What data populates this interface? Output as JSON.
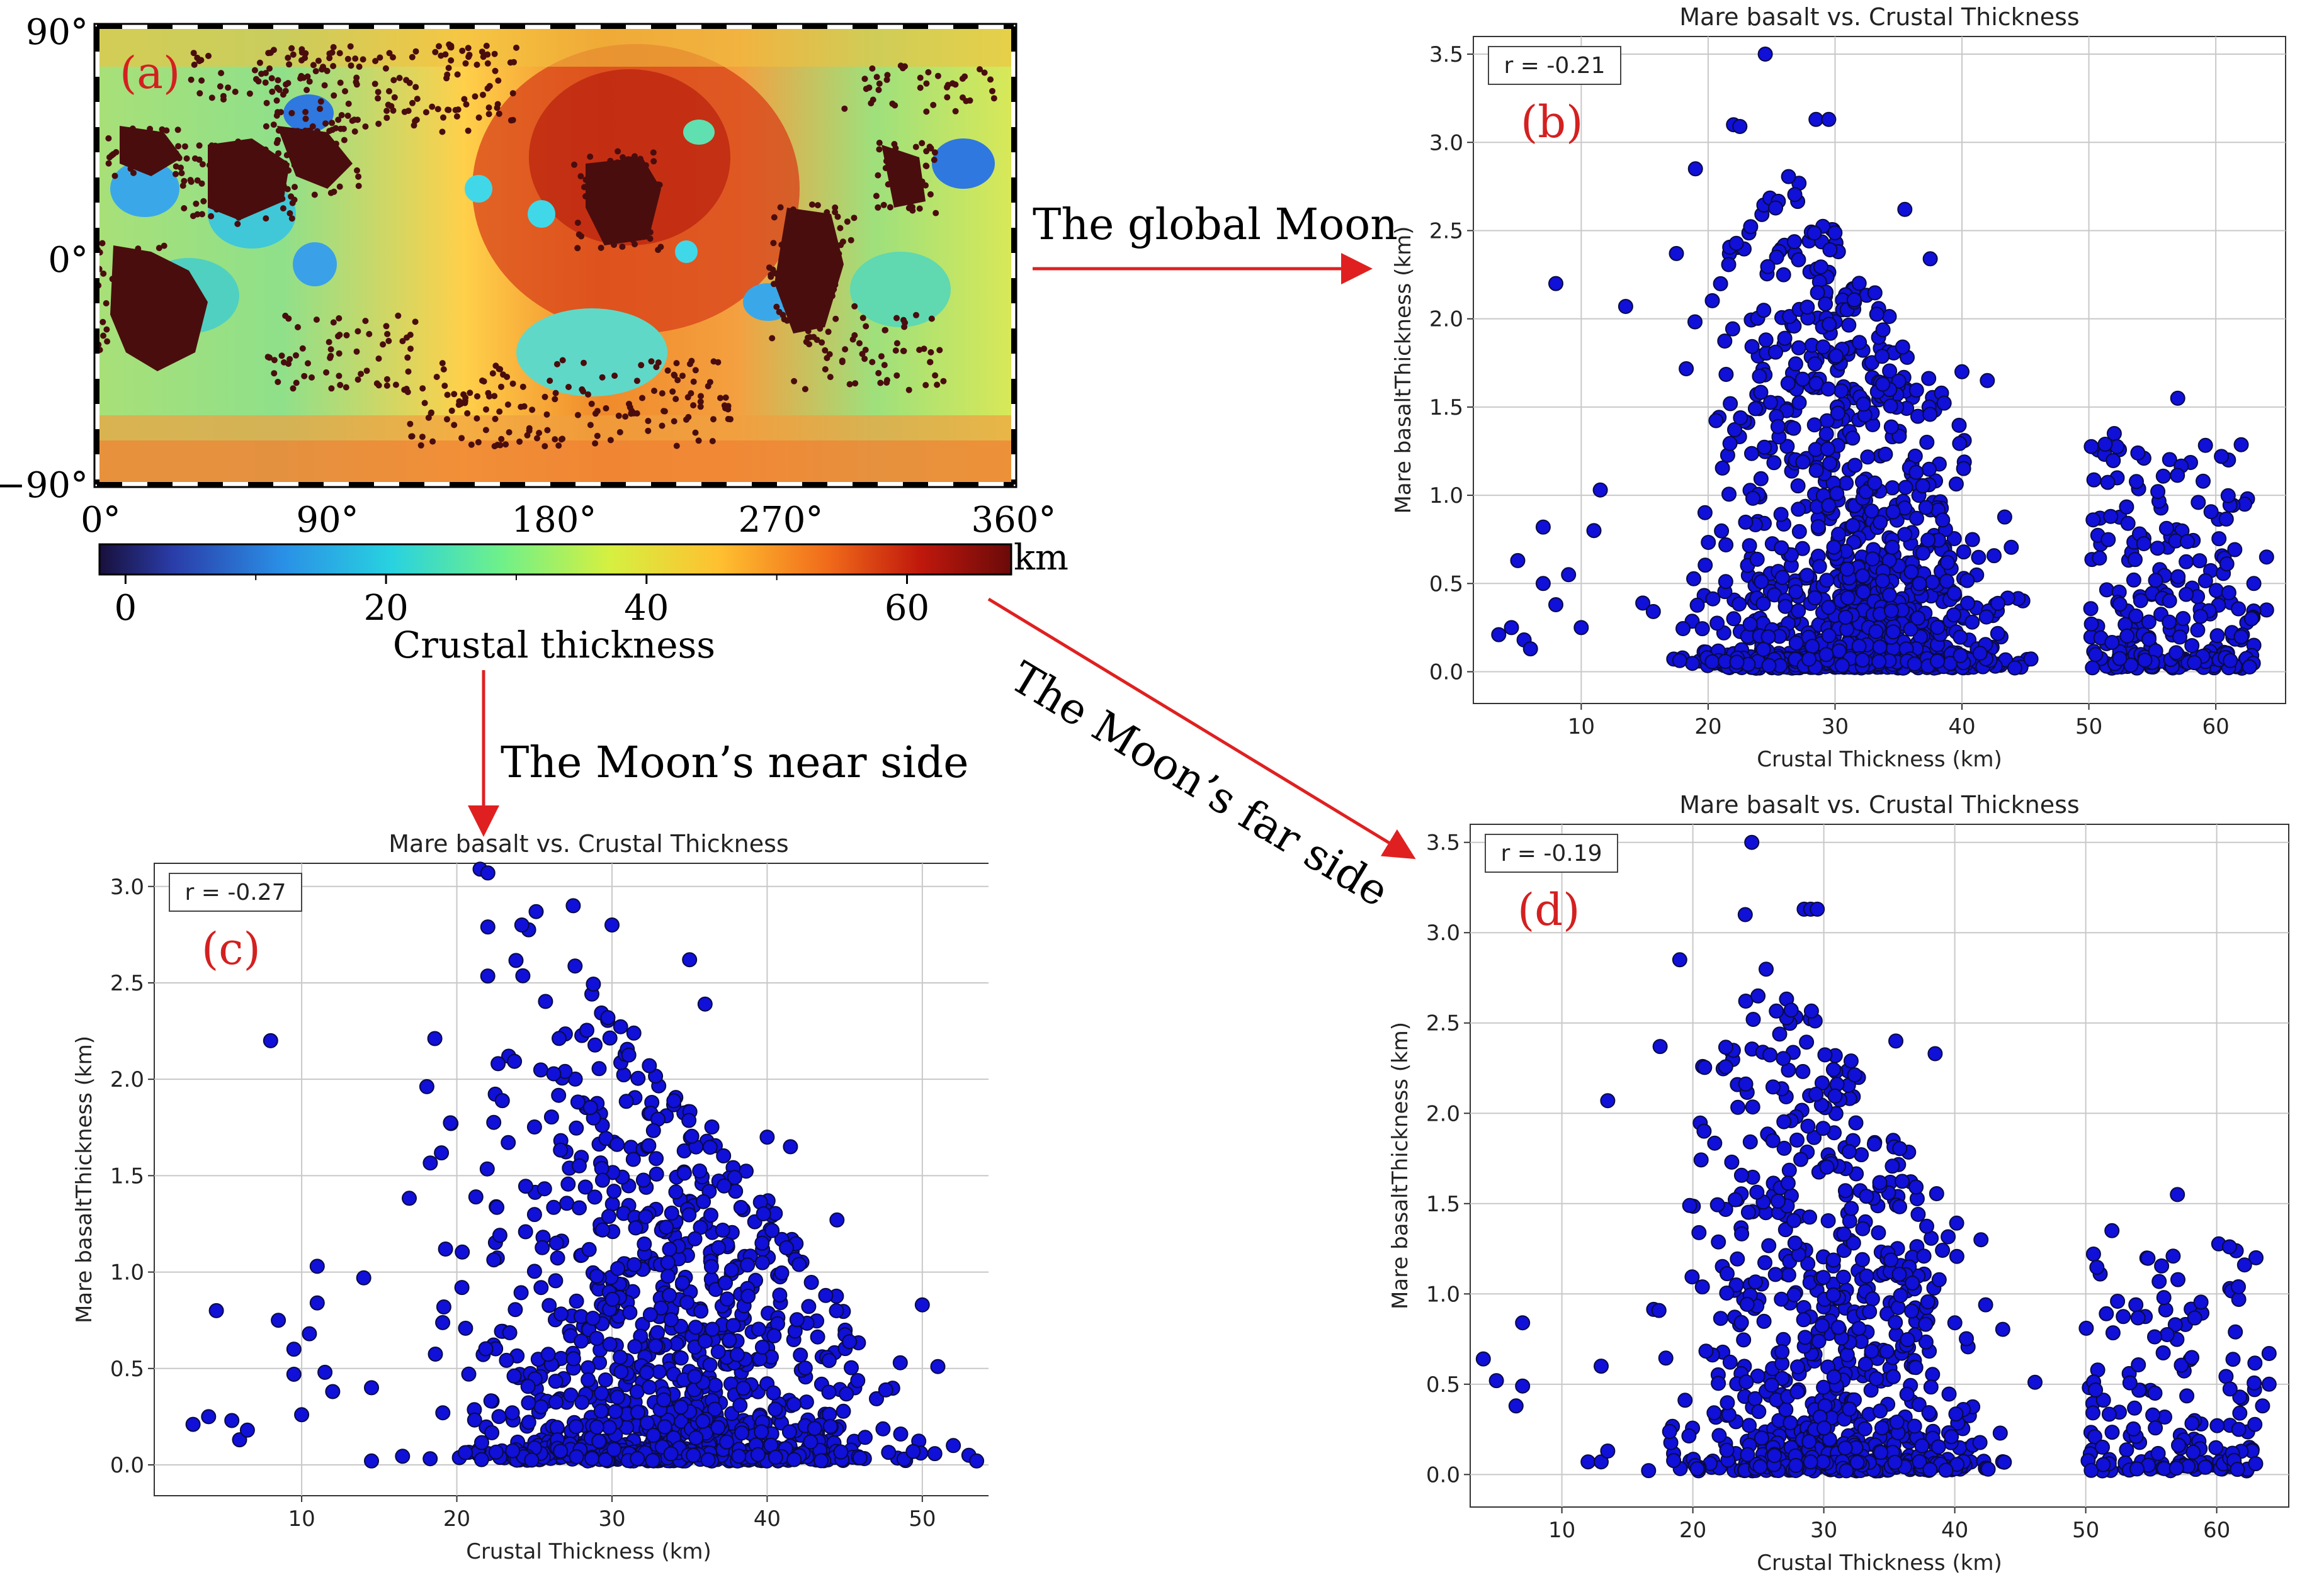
{
  "colors": {
    "point_fill": "#1010d8",
    "point_edge": "#0a0a40",
    "panel_label": "#d42020",
    "arrow": "#e02020",
    "map_basalt": "#4a0d0d"
  },
  "map": {
    "panel_label": "(a)",
    "lat_ticks": [
      "90°",
      "0°",
      "−90°"
    ],
    "lon_ticks": [
      "0°",
      "90°",
      "180°",
      "270°",
      "360°"
    ],
    "colorbar": {
      "ticks": [
        "0",
        "20",
        "40",
        "60"
      ],
      "unit": "km",
      "label": "Crustal thickness",
      "range": [
        -2,
        68
      ]
    }
  },
  "annotations": {
    "global": "The global Moon",
    "near": "The Moon’s near side",
    "far": "The Moon’s far side"
  },
  "chart_data": [
    {
      "id": "b",
      "panel_label": "(b)",
      "type": "scatter",
      "title": "Mare basalt vs. Crustal Thickness",
      "xlabel": "Crustal Thickness (km)",
      "ylabel": "Mare basaltThickness (km)",
      "r_label": "r = -0.21",
      "xlim": [
        1.5,
        65.5
      ],
      "ylim": [
        -0.18,
        3.6
      ],
      "xticks": [
        10,
        20,
        30,
        40,
        50,
        60
      ],
      "yticks": [
        0.0,
        0.5,
        1.0,
        1.5,
        2.0,
        2.5,
        3.0,
        3.5
      ],
      "grid": true,
      "n_points": 1400,
      "seed": 11,
      "points": [
        [
          3.5,
          0.21
        ],
        [
          4.5,
          0.25
        ],
        [
          5.0,
          0.63
        ],
        [
          5.5,
          0.18
        ],
        [
          6.0,
          0.13
        ],
        [
          7.0,
          0.82
        ],
        [
          7.0,
          0.5
        ],
        [
          8.0,
          2.2
        ],
        [
          8.0,
          0.38
        ],
        [
          9.0,
          0.55
        ],
        [
          10.0,
          0.25
        ],
        [
          11.0,
          0.8
        ],
        [
          11.5,
          1.03
        ],
        [
          13.5,
          2.07
        ],
        [
          22.0,
          3.1
        ],
        [
          22.5,
          3.09
        ],
        [
          24.5,
          3.5
        ],
        [
          28.5,
          3.13
        ],
        [
          29.5,
          3.13
        ],
        [
          17.5,
          2.37
        ],
        [
          19.0,
          2.85
        ],
        [
          35.5,
          2.62
        ],
        [
          37.5,
          2.34
        ],
        [
          40.0,
          1.7
        ],
        [
          42.0,
          1.65
        ],
        [
          52.0,
          1.35
        ],
        [
          57.0,
          1.55
        ],
        [
          59.0,
          1.08
        ],
        [
          61.0,
          1.2
        ],
        [
          62.5,
          0.98
        ],
        [
          64.0,
          0.65
        ],
        [
          64.0,
          0.35
        ],
        [
          63.0,
          0.5
        ],
        [
          62.0,
          0.18
        ],
        [
          63.0,
          0.15
        ],
        [
          60.0,
          0.14
        ]
      ]
    },
    {
      "id": "c",
      "panel_label": "(c)",
      "type": "scatter",
      "title": "Mare basalt vs. Crustal Thickness",
      "xlabel": "Crustal Thickness (km)",
      "ylabel": "Mare basaltThickness (km)",
      "r_label": "r = -0.27",
      "xlim": [
        0.5,
        56.5
      ],
      "ylim": [
        -0.16,
        3.12
      ],
      "xticks": [
        10,
        20,
        30,
        40,
        50
      ],
      "yticks": [
        0.0,
        0.5,
        1.0,
        1.5,
        2.0,
        2.5,
        3.0
      ],
      "grid": true,
      "n_points": 1200,
      "seed": 23,
      "points": [
        [
          3.0,
          0.21
        ],
        [
          4.0,
          0.25
        ],
        [
          4.5,
          0.8
        ],
        [
          5.5,
          0.23
        ],
        [
          6.0,
          0.13
        ],
        [
          6.5,
          0.18
        ],
        [
          8.0,
          2.2
        ],
        [
          8.5,
          0.75
        ],
        [
          9.5,
          0.47
        ],
        [
          9.5,
          0.6
        ],
        [
          10.0,
          0.26
        ],
        [
          10.5,
          0.68
        ],
        [
          11.0,
          0.84
        ],
        [
          11.0,
          1.03
        ],
        [
          11.5,
          0.48
        ],
        [
          12.0,
          0.38
        ],
        [
          14.0,
          0.97
        ],
        [
          14.5,
          0.4
        ],
        [
          14.5,
          0.02
        ],
        [
          21.5,
          3.09
        ],
        [
          22.0,
          3.07
        ],
        [
          22.0,
          2.79
        ],
        [
          27.5,
          2.9
        ],
        [
          30.0,
          2.8
        ],
        [
          35.0,
          2.62
        ],
        [
          36.0,
          2.39
        ],
        [
          40.0,
          1.7
        ],
        [
          41.5,
          1.65
        ],
        [
          44.5,
          1.27
        ],
        [
          50.0,
          0.83
        ],
        [
          51.0,
          0.51
        ],
        [
          52.0,
          0.1
        ],
        [
          53.0,
          0.05
        ],
        [
          53.5,
          0.02
        ]
      ]
    },
    {
      "id": "d",
      "panel_label": "(d)",
      "type": "scatter",
      "title": "Mare basalt vs. Crustal Thickness",
      "xlabel": "Crustal Thickness (km)",
      "ylabel": "Mare basaltThickness (km)",
      "r_label": "r = -0.19",
      "xlim": [
        3.0,
        65.5
      ],
      "ylim": [
        -0.18,
        3.6
      ],
      "xticks": [
        10,
        20,
        30,
        40,
        50,
        60
      ],
      "yticks": [
        0.0,
        0.5,
        1.0,
        1.5,
        2.0,
        2.5,
        3.0,
        3.5
      ],
      "grid": true,
      "n_points": 1000,
      "seed": 37,
      "points": [
        [
          4.0,
          0.64
        ],
        [
          5.0,
          0.52
        ],
        [
          6.5,
          0.38
        ],
        [
          7.0,
          0.84
        ],
        [
          7.0,
          0.49
        ],
        [
          12.0,
          0.07
        ],
        [
          13.0,
          0.07
        ],
        [
          13.5,
          2.07
        ],
        [
          13.5,
          0.13
        ],
        [
          13.0,
          0.6
        ],
        [
          24.0,
          3.1
        ],
        [
          24.5,
          3.5
        ],
        [
          28.5,
          3.13
        ],
        [
          29.0,
          3.13
        ],
        [
          29.5,
          3.13
        ],
        [
          17.5,
          2.37
        ],
        [
          19.0,
          2.85
        ],
        [
          35.5,
          2.4
        ],
        [
          38.5,
          2.33
        ],
        [
          42.0,
          1.3
        ],
        [
          52.0,
          1.35
        ],
        [
          57.0,
          1.55
        ],
        [
          61.0,
          1.03
        ],
        [
          63.0,
          1.2
        ],
        [
          64.0,
          0.67
        ],
        [
          64.0,
          0.5
        ],
        [
          63.5,
          0.38
        ],
        [
          62.5,
          0.15
        ]
      ]
    }
  ]
}
